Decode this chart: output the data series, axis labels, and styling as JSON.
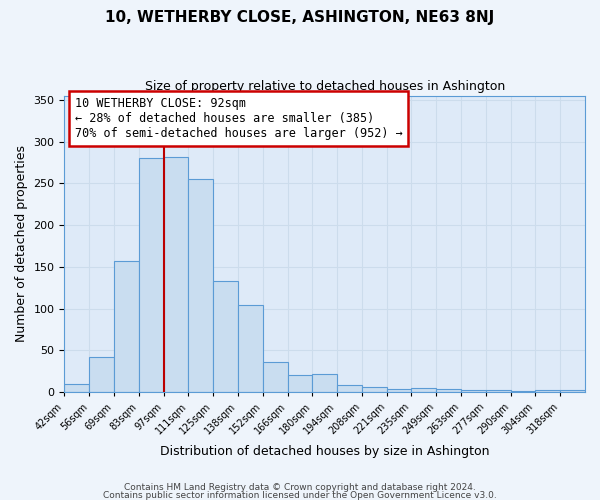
{
  "title": "10, WETHERBY CLOSE, ASHINGTON, NE63 8NJ",
  "subtitle": "Size of property relative to detached houses in Ashington",
  "xlabel": "Distribution of detached houses by size in Ashington",
  "ylabel": "Number of detached properties",
  "bar_labels": [
    "42sqm",
    "56sqm",
    "69sqm",
    "83sqm",
    "97sqm",
    "111sqm",
    "125sqm",
    "138sqm",
    "152sqm",
    "166sqm",
    "180sqm",
    "194sqm",
    "208sqm",
    "221sqm",
    "235sqm",
    "249sqm",
    "263sqm",
    "277sqm",
    "290sqm",
    "304sqm",
    "318sqm"
  ],
  "bar_values": [
    10,
    42,
    157,
    280,
    281,
    255,
    133,
    104,
    36,
    21,
    22,
    9,
    6,
    4,
    5,
    4,
    3,
    2,
    1,
    2,
    2
  ],
  "bar_color": "#c9ddf0",
  "bar_edge_color": "#5b9bd5",
  "grid_color": "#ccdcec",
  "background_color": "#deeaf8",
  "fig_background_color": "#eef4fb",
  "property_line_color": "#bb0000",
  "annotation_text": "10 WETHERBY CLOSE: 92sqm\n← 28% of detached houses are smaller (385)\n70% of semi-detached houses are larger (952) →",
  "annotation_box_edgecolor": "#cc0000",
  "ylim": [
    0,
    355
  ],
  "yticks": [
    0,
    50,
    100,
    150,
    200,
    250,
    300,
    350
  ],
  "footer1": "Contains HM Land Registry data © Crown copyright and database right 2024.",
  "footer2": "Contains public sector information licensed under the Open Government Licence v3.0."
}
